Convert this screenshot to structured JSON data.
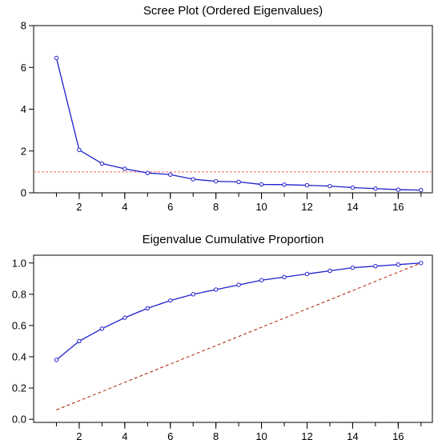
{
  "chart_data": [
    {
      "type": "line",
      "title": "Scree Plot (Ordered Eigenvalues)",
      "xlabel": "",
      "ylabel": "",
      "xlim": [
        0,
        17.5
      ],
      "ylim": [
        0,
        8
      ],
      "x_ticks": [
        2,
        4,
        6,
        8,
        10,
        12,
        14,
        16
      ],
      "y_ticks": [
        0,
        2,
        4,
        6,
        8
      ],
      "grid": false,
      "series": [
        {
          "color": "#1f1fcc",
          "marker": "circle",
          "x": [
            1,
            2,
            3,
            4,
            5,
            6,
            7,
            8,
            9,
            10,
            11,
            12,
            13,
            14,
            15,
            16,
            17
          ],
          "values": [
            6.45,
            2.05,
            1.4,
            1.15,
            0.95,
            0.87,
            0.65,
            0.55,
            0.52,
            0.4,
            0.39,
            0.36,
            0.32,
            0.25,
            0.2,
            0.15,
            0.13
          ]
        }
      ],
      "reference_lines": [
        {
          "orientation": "horizontal",
          "y": 1,
          "color": "#ff6666",
          "style": "dashed"
        }
      ]
    },
    {
      "type": "line",
      "title": "Eigenvalue Cumulative Proportion",
      "xlabel": "",
      "ylabel": "",
      "xlim": [
        0,
        17.5
      ],
      "ylim": [
        -0.02,
        1.05
      ],
      "x_ticks": [
        2,
        4,
        6,
        8,
        10,
        12,
        14,
        16
      ],
      "y_ticks": [
        0.0,
        0.2,
        0.4,
        0.6,
        0.8,
        1.0
      ],
      "y_tick_labels": [
        "0.0",
        "0.2",
        "0.4",
        "0.6",
        "0.8",
        "1.0"
      ],
      "grid": false,
      "series": [
        {
          "color": "#1f1fcc",
          "marker": "circle",
          "x": [
            1,
            2,
            3,
            4,
            5,
            6,
            7,
            8,
            9,
            10,
            11,
            12,
            13,
            14,
            15,
            16,
            17
          ],
          "values": [
            0.38,
            0.5,
            0.58,
            0.65,
            0.71,
            0.76,
            0.8,
            0.83,
            0.86,
            0.89,
            0.91,
            0.93,
            0.95,
            0.97,
            0.98,
            0.99,
            1.0
          ]
        }
      ],
      "reference_lines": [
        {
          "orientation": "diagonal",
          "x": [
            1,
            17
          ],
          "y": [
            0.06,
            1.0
          ],
          "color": "#aa2200",
          "style": "dashed"
        }
      ]
    }
  ]
}
